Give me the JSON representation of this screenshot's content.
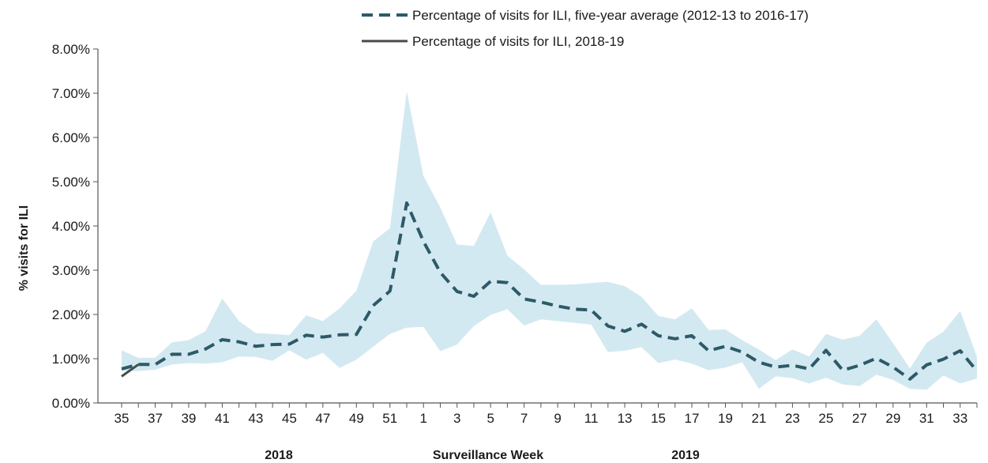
{
  "chart_data": {
    "type": "line",
    "title": "",
    "xlabel": "Surveillance Week",
    "ylabel": "% visits for ILI",
    "year_labels": [
      "2018",
      "2019"
    ],
    "ylim": [
      0,
      0.08
    ],
    "y_ticks": [
      "0.00%",
      "1.00%",
      "2.00%",
      "3.00%",
      "4.00%",
      "5.00%",
      "6.00%",
      "7.00%",
      "8.00%"
    ],
    "x_ticks": [
      "35",
      "37",
      "39",
      "41",
      "43",
      "45",
      "47",
      "49",
      "51",
      "1",
      "3",
      "5",
      "7",
      "9",
      "11",
      "13",
      "15",
      "17",
      "19",
      "21",
      "23",
      "25",
      "27",
      "29",
      "31",
      "33"
    ],
    "categories": [
      "35",
      "36",
      "37",
      "38",
      "39",
      "40",
      "41",
      "42",
      "43",
      "44",
      "45",
      "46",
      "47",
      "48",
      "49",
      "50",
      "51",
      "52",
      "1",
      "2",
      "3",
      "4",
      "5",
      "6",
      "7",
      "8",
      "9",
      "10",
      "11",
      "12",
      "13",
      "14",
      "15",
      "16",
      "17",
      "18",
      "19",
      "20",
      "21",
      "22",
      "23",
      "24",
      "25",
      "26",
      "27",
      "28",
      "29",
      "30",
      "31",
      "32",
      "33",
      "34"
    ],
    "legend_position": "top-right",
    "grid": false,
    "series": [
      {
        "name": "Percentage of visits for ILI, five-year average (2012-13 to 2016-17)",
        "style": "dashed",
        "color": "#2d5a68",
        "values": [
          0.0077,
          0.0087,
          0.0087,
          0.011,
          0.011,
          0.0122,
          0.0143,
          0.0138,
          0.0128,
          0.0132,
          0.0133,
          0.0153,
          0.0149,
          0.0154,
          0.0155,
          0.022,
          0.0253,
          0.0452,
          0.0365,
          0.0295,
          0.0252,
          0.0241,
          0.0275,
          0.0272,
          0.0235,
          0.0228,
          0.0219,
          0.0212,
          0.021,
          0.0174,
          0.0162,
          0.0178,
          0.0152,
          0.0145,
          0.0152,
          0.0118,
          0.0128,
          0.0115,
          0.0092,
          0.0081,
          0.0085,
          0.0077,
          0.0119,
          0.0074,
          0.0085,
          0.0101,
          0.0081,
          0.0054,
          0.0086,
          0.0099,
          0.0118,
          0.0072
        ]
      },
      {
        "name": "Percentage of visits for ILI, 2018-19",
        "style": "solid",
        "color": "#4a4a4a",
        "values": [
          0.006,
          0.0087,
          null,
          null,
          null,
          null,
          null,
          null,
          null,
          null,
          null,
          null,
          null,
          null,
          null,
          null,
          null,
          null,
          null,
          null,
          null,
          null,
          null,
          null,
          null,
          null,
          null,
          null,
          null,
          null,
          null,
          null,
          null,
          null,
          null,
          null,
          null,
          null,
          null,
          null,
          null,
          null,
          null,
          null,
          null,
          null,
          null,
          null,
          null,
          null,
          null,
          null
        ]
      }
    ],
    "range_band": {
      "color": "#d3e9f1",
      "upper": [
        0.0119,
        0.0102,
        0.0102,
        0.0137,
        0.0142,
        0.0162,
        0.0236,
        0.0185,
        0.0158,
        0.0156,
        0.0153,
        0.0198,
        0.0185,
        0.0214,
        0.0254,
        0.0365,
        0.0395,
        0.0705,
        0.0513,
        0.0442,
        0.0358,
        0.0355,
        0.0431,
        0.0333,
        0.0302,
        0.0267,
        0.0267,
        0.0268,
        0.0271,
        0.0274,
        0.0264,
        0.024,
        0.0197,
        0.0189,
        0.0214,
        0.0165,
        0.0166,
        0.0142,
        0.0121,
        0.0097,
        0.0121,
        0.0105,
        0.0156,
        0.0143,
        0.0152,
        0.0189,
        0.0135,
        0.0078,
        0.0136,
        0.0161,
        0.0208,
        0.0105
      ],
      "lower": [
        0.0073,
        0.0072,
        0.0075,
        0.0087,
        0.009,
        0.0089,
        0.0092,
        0.0105,
        0.0104,
        0.0095,
        0.0119,
        0.0098,
        0.0113,
        0.0079,
        0.0098,
        0.0127,
        0.0156,
        0.017,
        0.0172,
        0.0117,
        0.0132,
        0.0174,
        0.0199,
        0.0212,
        0.0175,
        0.0189,
        0.0185,
        0.0181,
        0.0177,
        0.0115,
        0.0118,
        0.0126,
        0.009,
        0.0098,
        0.0089,
        0.0074,
        0.008,
        0.0092,
        0.0032,
        0.006,
        0.0056,
        0.0044,
        0.0057,
        0.0042,
        0.0038,
        0.0064,
        0.0052,
        0.0032,
        0.003,
        0.0062,
        0.0044,
        0.0055
      ]
    }
  }
}
